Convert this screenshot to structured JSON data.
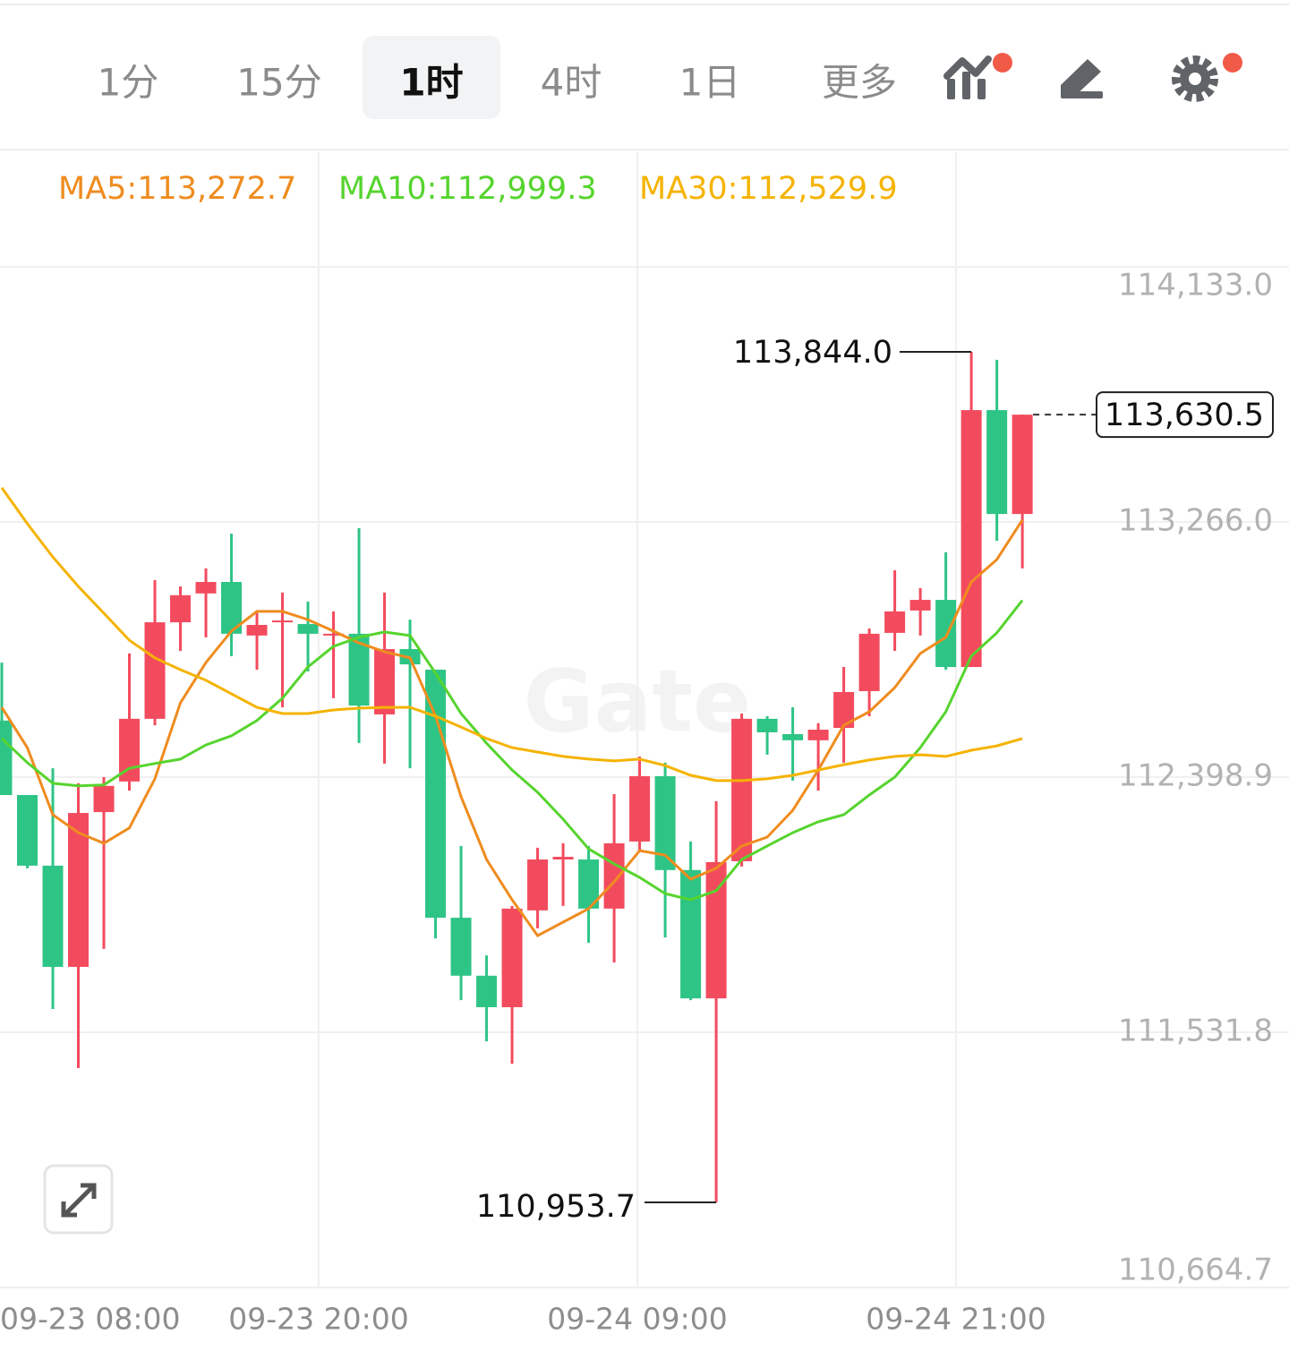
{
  "toolbar": {
    "tabs": [
      "1分",
      "15分",
      "1时",
      "4时",
      "1日",
      "更多"
    ],
    "active_index": 2
  },
  "chart_data": {
    "type": "candlestick",
    "watermark": "Gate",
    "up_color": "#f34b5e",
    "down_color": "#2ec486",
    "open": [
      112591,
      112338,
      112098,
      111754,
      112280,
      112384,
      112597,
      112925,
      113023,
      113062,
      112880,
      112925,
      112919,
      112880,
      112886,
      112612,
      112834,
      112764,
      111921,
      111724,
      111617,
      111946,
      112119,
      112119,
      111952,
      112180,
      112402,
      112083,
      111647,
      112113,
      112597,
      112545,
      112524,
      112566,
      112691,
      112889,
      112965,
      113001,
      112773,
      113646,
      113293
    ],
    "high": [
      112788,
      112338,
      112429,
      112378,
      112399,
      112819,
      113068,
      113047,
      113108,
      113226,
      112962,
      113026,
      112995,
      112962,
      113245,
      113026,
      112934,
      112764,
      112165,
      111793,
      111961,
      112159,
      112174,
      112165,
      112341,
      112469,
      112448,
      112180,
      112317,
      112615,
      112606,
      112636,
      112582,
      112773,
      112904,
      113102,
      113041,
      113163,
      113844,
      113817,
      113630.5
    ],
    "low": [
      112338,
      112089,
      111611,
      111410,
      111815,
      112353,
      112575,
      112828,
      112874,
      112810,
      112764,
      112636,
      112758,
      112667,
      112515,
      112445,
      112429,
      111851,
      111641,
      111501,
      111425,
      111885,
      111961,
      111836,
      111769,
      112149,
      111854,
      111641,
      110953.7,
      112095,
      112475,
      112387,
      112353,
      112448,
      112606,
      112828,
      112880,
      112764,
      112773,
      113202,
      113108
    ],
    "close": [
      112338,
      112098,
      111754,
      112277,
      112369,
      112597,
      112925,
      113017,
      113062,
      112886,
      112916,
      112931,
      112886,
      112886,
      112642,
      112834,
      112782,
      111921,
      111724,
      111617,
      111952,
      112119,
      112128,
      111952,
      112174,
      112402,
      112083,
      111647,
      112110,
      112597,
      112551,
      112524,
      112560,
      112688,
      112886,
      112962,
      113001,
      112773,
      113646,
      113293,
      113630.5
    ],
    "series": [
      {
        "name": "MA5:113,272.7",
        "color": "#ef8c1f",
        "values": [
          112636,
          112499,
          112271,
          112210,
          112174,
          112226,
          112393,
          112651,
          112788,
          112895,
          112962,
          112962,
          112934,
          112895,
          112855,
          112825,
          112804,
          112606,
          112332,
          112119,
          111982,
          111860,
          111906,
          111952,
          112043,
          112149,
          112134,
          112052,
          112089,
          112165,
          112195,
          112286,
          112423,
          112575,
          112621,
          112703,
          112819,
          112874,
          113062,
          113138,
          113272.7
        ]
      },
      {
        "name": "MA10:112,999.3",
        "color": "#56d42e",
        "values": [
          112530,
          112448,
          112378,
          112369,
          112372,
          112429,
          112445,
          112460,
          112508,
          112539,
          112591,
          112667,
          112773,
          112843,
          112874,
          112892,
          112880,
          112752,
          112615,
          112514,
          112423,
          112347,
          112256,
          112155,
          112104,
          112058,
          112003,
          111982,
          112013,
          112119,
          112165,
          112210,
          112247,
          112271,
          112338,
          112399,
          112499,
          112621,
          112810,
          112889,
          112999.3
        ]
      },
      {
        "name": "MA30:112,529.9",
        "color": "#f5b300",
        "values": [
          113382,
          113260,
          113147,
          113047,
          112956,
          112864,
          112804,
          112764,
          112728,
          112682,
          112636,
          112615,
          112615,
          112627,
          112633,
          112636,
          112636,
          112606,
          112569,
          112530,
          112499,
          112484,
          112469,
          112460,
          112454,
          112460,
          112438,
          112405,
          112387,
          112387,
          112393,
          112405,
          112423,
          112441,
          112457,
          112469,
          112475,
          112469,
          112490,
          112505,
          112529.9
        ]
      }
    ],
    "high_label": {
      "value": 113844,
      "label": "113,844.0"
    },
    "low_label": {
      "value": 110953.7,
      "label": "110,953.7"
    },
    "last_price": {
      "value": 113630.5,
      "label": "113,630.5"
    },
    "ylim": [
      110664.7,
      114133.0
    ],
    "yticks": [
      {
        "value": 114133.0,
        "label": "114,133.0"
      },
      {
        "value": 113266.0,
        "label": "113,266.0"
      },
      {
        "value": 112398.9,
        "label": "112,398.9"
      },
      {
        "value": 111531.8,
        "label": "111,531.8"
      },
      {
        "value": 110664.7,
        "label": "110,664.7"
      }
    ],
    "xlim": [
      -0.07,
      50.45
    ],
    "xticks": [
      {
        "value": 0,
        "label": "09-23 08:00"
      },
      {
        "value": 12.42,
        "label": "09-23 20:00"
      },
      {
        "value": 24.91,
        "label": "09-24 09:00"
      },
      {
        "value": 37.4,
        "label": "09-24 21:00"
      }
    ],
    "grid": true
  }
}
